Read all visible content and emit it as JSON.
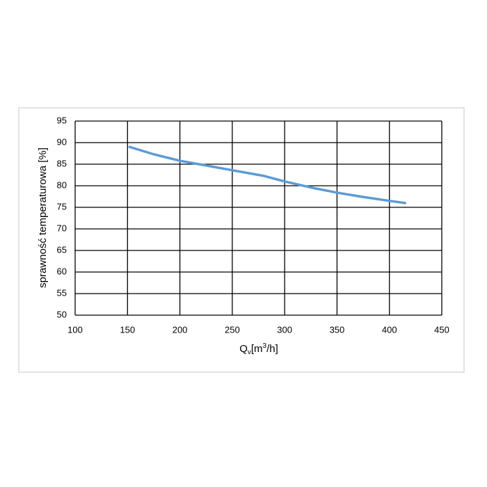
{
  "chart_data": {
    "type": "line",
    "x_label_parts": [
      "Q",
      "v",
      "[m",
      "3",
      "/h]"
    ],
    "y_label": "sprawność temperaturowa [%]",
    "xlim": [
      100,
      450
    ],
    "xticks": [
      100,
      150,
      200,
      250,
      300,
      350,
      400,
      450
    ],
    "ylim": [
      50,
      95
    ],
    "yticks": [
      50,
      55,
      60,
      65,
      70,
      75,
      80,
      85,
      90,
      95
    ],
    "grid": true,
    "series": [
      {
        "color": "#5b9bd5",
        "x": [
          152,
          175,
          200,
          225,
          250,
          280,
          300,
          325,
          350,
          375,
          400,
          415
        ],
        "values": [
          89,
          87.3,
          85.8,
          84.7,
          83.6,
          82.3,
          81,
          79.6,
          78.4,
          77.4,
          76.5,
          76
        ]
      }
    ]
  }
}
